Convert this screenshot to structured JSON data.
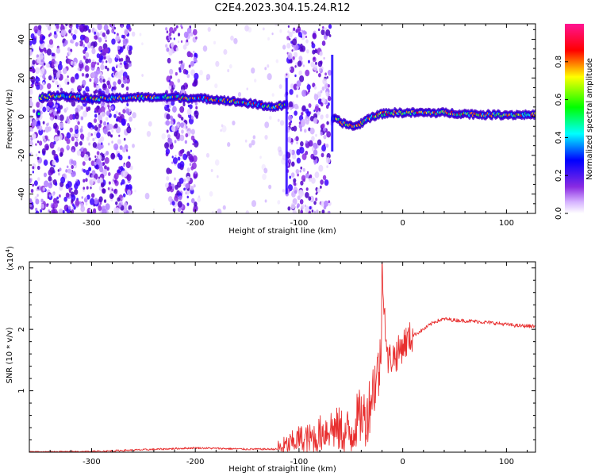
{
  "figure_title": "C2E4.2023.304.15.24.R12",
  "colors": {
    "spectrogram_ink": "#7a1de0",
    "line_red": "#e83030",
    "axis": "#000000"
  },
  "chart_data": [
    {
      "type": "heatmap",
      "xlabel": "Height of straight line (km)",
      "ylabel": "Frequency (Hz)",
      "xlim": [
        -360,
        128
      ],
      "ylim": [
        -50,
        48
      ],
      "xticks": [
        -300,
        -200,
        -100,
        0,
        100
      ],
      "xtick_labels": [
        "-300",
        "-200",
        "-100",
        "0",
        "100"
      ],
      "yticks": [
        -40,
        -20,
        0,
        20,
        40
      ],
      "ytick_labels": [
        "-40",
        "-20",
        "0",
        "20",
        "40"
      ],
      "colorbar": {
        "label": "Normalized spectral amplitude",
        "range": [
          0.0,
          1.0
        ],
        "ticks": [
          0.0,
          0.2,
          0.4,
          0.6,
          0.8
        ],
        "tick_labels": [
          "0.0",
          "0.2",
          "0.4",
          "0.6",
          "0.8"
        ],
        "colormap": [
          "#ffffff",
          "#d6b3ff",
          "#8a2be2",
          "#0000ff",
          "#00ffff",
          "#00ff00",
          "#ffff00",
          "#ff0000",
          "#ff1493"
        ]
      },
      "ridge": {
        "x": [
          -350,
          -330,
          -300,
          -260,
          -220,
          -180,
          -150,
          -125,
          -112,
          -66,
          -55,
          -45,
          -30,
          -15,
          0,
          40,
          80,
          128
        ],
        "y": [
          10,
          11,
          9,
          10,
          10,
          9,
          7,
          5,
          6,
          -1,
          -4,
          -5,
          0,
          2,
          2,
          2,
          1,
          1
        ]
      },
      "noise_bands": [
        [
          -360,
          -262
        ],
        [
          -228,
          -198
        ],
        [
          -112,
          -70
        ]
      ],
      "cutoff_line_x": -68
    },
    {
      "type": "line",
      "xlabel": "Height of straight line (km)",
      "ylabel": "SNR (10 * v/v)",
      "y_multiplier_label": "(x10",
      "y_multiplier_exp": "4",
      "y_multiplier_close": ")",
      "xlim": [
        -360,
        128
      ],
      "ylim": [
        0,
        3.1
      ],
      "xticks": [
        -300,
        -200,
        -100,
        0,
        100
      ],
      "xtick_labels": [
        "-300",
        "-200",
        "-100",
        "0",
        "100"
      ],
      "yticks": [
        1,
        2,
        3
      ],
      "ytick_labels": [
        "1",
        "2",
        "3"
      ],
      "series": [
        {
          "color": "#e83030",
          "x": [
            -360,
            -300,
            -250,
            -200,
            -150,
            -120,
            -110,
            -100,
            -90,
            -80,
            -70,
            -60,
            -50,
            -45,
            -40,
            -35,
            -30,
            -25,
            -21,
            -20,
            -15,
            -10,
            -5,
            0,
            10,
            20,
            30,
            40,
            50,
            70,
            90,
            110,
            128
          ],
          "y": [
            0.0,
            0.01,
            0.04,
            0.07,
            0.05,
            0.05,
            0.12,
            0.22,
            0.2,
            0.3,
            0.4,
            0.35,
            0.3,
            0.5,
            0.6,
            0.55,
            0.95,
            1.25,
            1.45,
            3.1,
            1.5,
            1.55,
            1.6,
            1.75,
            1.9,
            2.0,
            2.12,
            2.17,
            2.15,
            2.13,
            2.1,
            2.06,
            2.05
          ]
        }
      ]
    }
  ]
}
